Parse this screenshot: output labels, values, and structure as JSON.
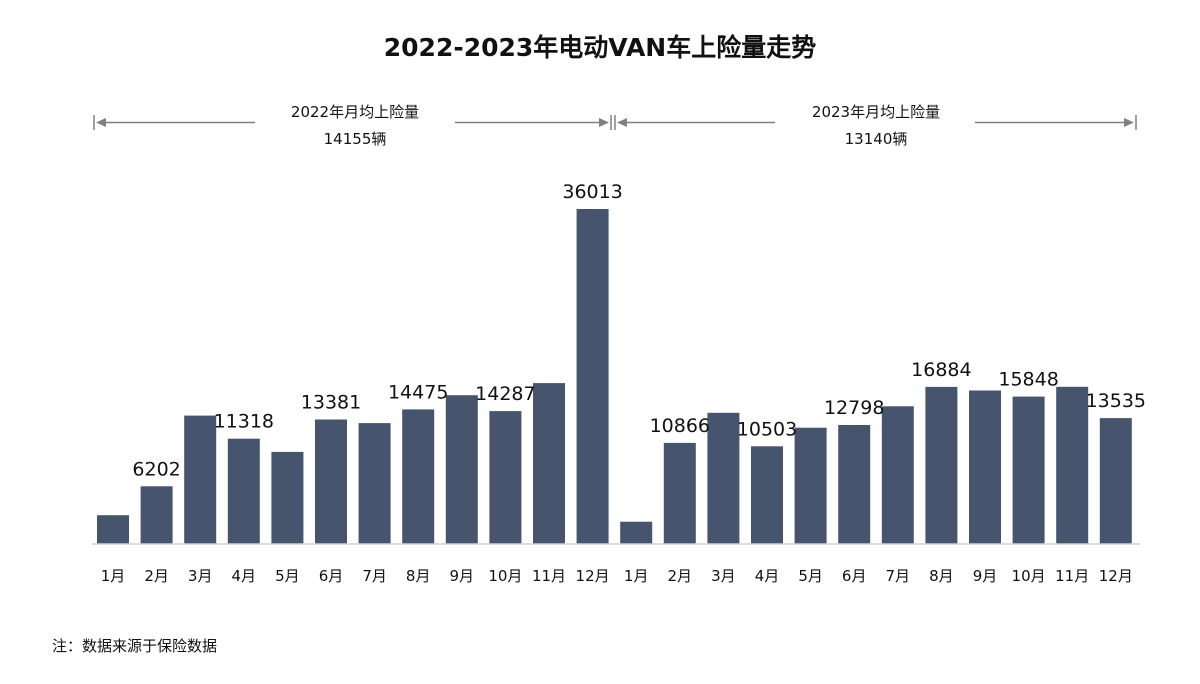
{
  "chart_data": {
    "type": "bar",
    "title": "2022-2023年电动VAN车上险量走势",
    "categories": [
      "1月",
      "2月",
      "3月",
      "4月",
      "5月",
      "6月",
      "7月",
      "8月",
      "9月",
      "10月",
      "11月",
      "12月",
      "1月",
      "2月",
      "3月",
      "4月",
      "5月",
      "6月",
      "7月",
      "8月",
      "9月",
      "10月",
      "11月",
      "12月"
    ],
    "values": [
      3100,
      6202,
      13800,
      11318,
      9900,
      13381,
      13000,
      14475,
      16000,
      14287,
      17300,
      36013,
      2400,
      10866,
      14100,
      10503,
      12500,
      12798,
      14800,
      16884,
      16500,
      15848,
      16900,
      13535
    ],
    "data_labels": [
      "",
      "6202",
      "",
      "11318",
      "",
      "13381",
      "",
      "14475",
      "",
      "14287",
      "",
      "36013",
      "",
      "10866",
      "",
      "10503",
      "",
      "12798",
      "",
      "16884",
      "",
      "15848",
      "",
      "13535"
    ],
    "ylim": [
      0,
      36013
    ],
    "y_axis_visible": false,
    "grid": false,
    "bar_color": "#46556d",
    "periods": [
      {
        "label": "2022年月均上险量",
        "value": "14155辆",
        "start_index": 0,
        "end_index": 11
      },
      {
        "label": "2023年月均上险量",
        "value": "13140辆",
        "start_index": 12,
        "end_index": 23
      }
    ]
  },
  "note": "注：数据来源于保险数据"
}
